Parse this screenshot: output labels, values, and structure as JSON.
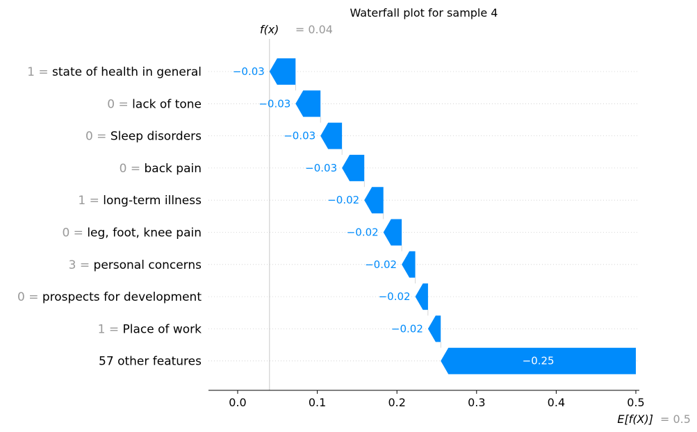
{
  "chart_data": {
    "type": "waterfall",
    "title": "Waterfall plot for sample 4",
    "fx_label": "f(x)",
    "fx_value": "= 0.04",
    "ex_label": "E[f(X)]",
    "ex_value": "= 0.5",
    "base_value": 0.5,
    "final_value": 0.04,
    "xlim": [
      -0.037,
      0.5
    ],
    "xticks": [
      0.0,
      0.1,
      0.2,
      0.3,
      0.4,
      0.5
    ],
    "xtick_labels": [
      "0.0",
      "0.1",
      "0.2",
      "0.3",
      "0.4",
      "0.5"
    ],
    "features": [
      {
        "value": "1 =",
        "name": "state of health in general",
        "start": 0.0727,
        "end": 0.04,
        "label": "−0.03"
      },
      {
        "value": "0 =",
        "name": "lack of tone",
        "start": 0.104,
        "end": 0.0727,
        "label": "−0.03"
      },
      {
        "value": "0 =",
        "name": "Sleep disorders",
        "start": 0.131,
        "end": 0.104,
        "label": "−0.03"
      },
      {
        "value": "0 =",
        "name": "back pain",
        "start": 0.159,
        "end": 0.131,
        "label": "−0.03"
      },
      {
        "value": "1 =",
        "name": "long-term illness",
        "start": 0.183,
        "end": 0.159,
        "label": "−0.02"
      },
      {
        "value": "0 =",
        "name": "leg, foot, knee pain",
        "start": 0.206,
        "end": 0.183,
        "label": "−0.02"
      },
      {
        "value": "3 =",
        "name": "personal concerns",
        "start": 0.223,
        "end": 0.206,
        "label": "−0.02"
      },
      {
        "value": "0 =",
        "name": "prospects for development",
        "start": 0.239,
        "end": 0.223,
        "label": "−0.02"
      },
      {
        "value": "1 =",
        "name": "Place of work",
        "start": 0.255,
        "end": 0.239,
        "label": "−0.02"
      },
      {
        "value": "",
        "name": "57 other features",
        "start": 0.5,
        "end": 0.255,
        "label": "−0.25"
      }
    ],
    "colors": {
      "negative": "#008bfb",
      "label_on_bar": "#ffffff",
      "muted": "#999999"
    },
    "grid": false
  }
}
